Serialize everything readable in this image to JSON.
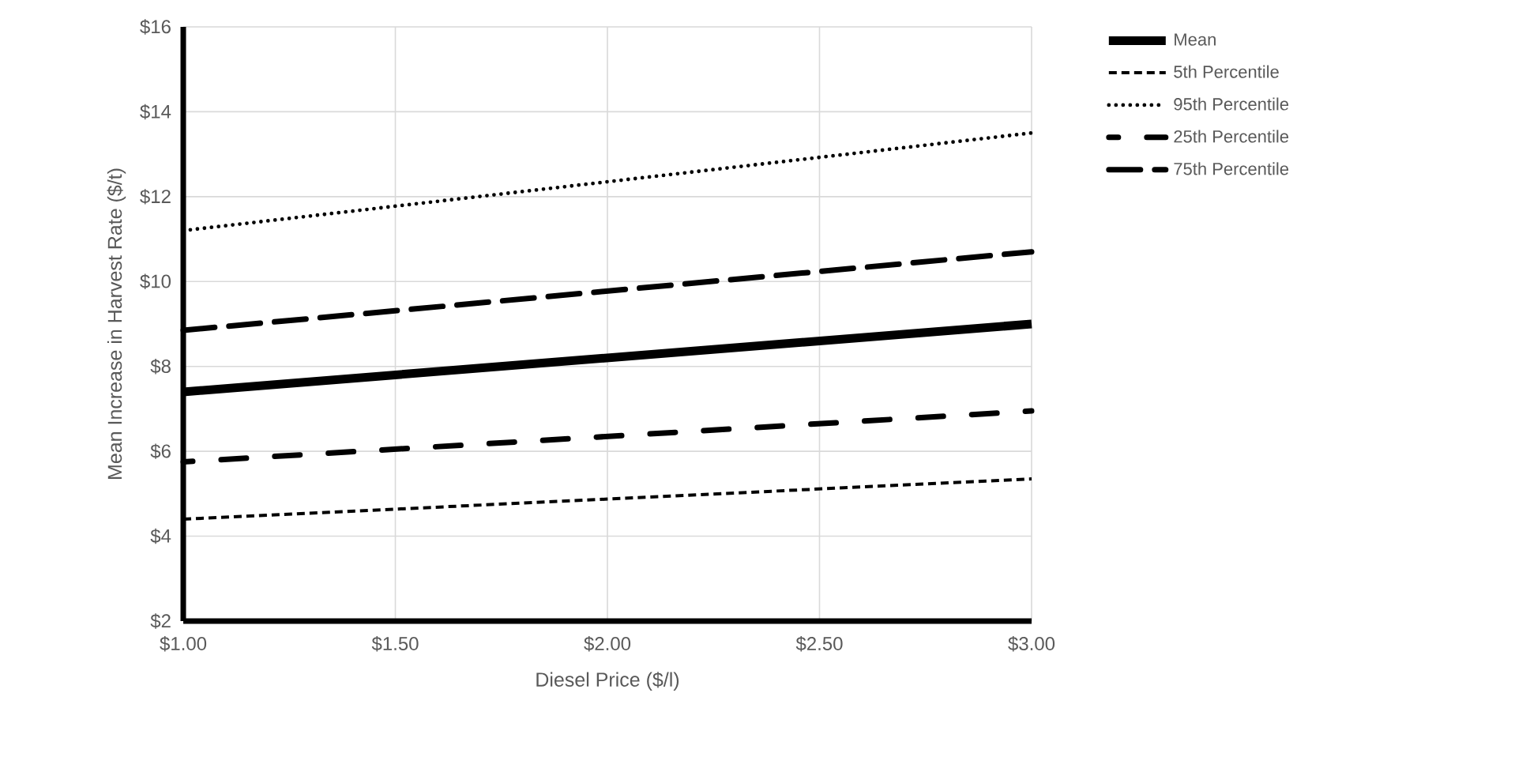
{
  "chart_data": {
    "type": "line",
    "xlabel": "Diesel Price ($/l)",
    "ylabel": "Mean Increase in Harvest Rate ($/t)",
    "x": [
      1,
      3
    ],
    "series": [
      {
        "name": "Mean",
        "color": "#000000",
        "line_style": "solid",
        "values": [
          7.4,
          9.0
        ]
      },
      {
        "name": "5th Percentile",
        "color": "#000000",
        "line_style": "dashed",
        "values": [
          4.4,
          5.35
        ]
      },
      {
        "name": "95th Percentile",
        "color": "#000000",
        "line_style": "dotted",
        "values": [
          11.2,
          13.5
        ]
      },
      {
        "name": "25th Percentile",
        "color": "#000000",
        "line_style": "dash dot",
        "values": [
          5.75,
          6.95
        ]
      },
      {
        "name": "75th Percentile",
        "color": "#000000",
        "line_style": "long dash",
        "values": [
          8.85,
          10.7
        ]
      }
    ],
    "xlim": [
      1,
      3
    ],
    "ylim": [
      2,
      16
    ],
    "xticks": [
      {
        "value": 1,
        "label": "$1.00"
      },
      {
        "value": 1.5,
        "label": "$1.50"
      },
      {
        "value": 2,
        "label": "$2.00"
      },
      {
        "value": 2.5,
        "label": "$2.50"
      },
      {
        "value": 3,
        "label": "$3.00"
      }
    ],
    "yticks": [
      {
        "value": 2,
        "label": "$2"
      },
      {
        "value": 4,
        "label": "$4"
      },
      {
        "value": 6,
        "label": "$6"
      },
      {
        "value": 8,
        "label": "$8"
      },
      {
        "value": 10,
        "label": "$10"
      },
      {
        "value": 12,
        "label": "$12"
      },
      {
        "value": 14,
        "label": "$14"
      },
      {
        "value": 16,
        "label": "$16"
      }
    ],
    "grid": true,
    "legend": "right",
    "marker": "none"
  }
}
